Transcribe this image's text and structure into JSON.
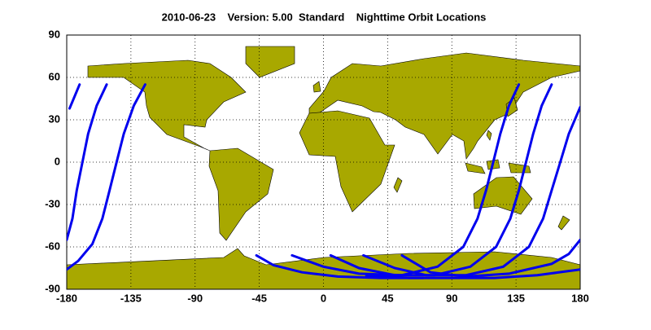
{
  "chart_data": {
    "type": "map",
    "title": "2010-06-23    Version: 5.00  Standard    Nighttime Orbit Locations",
    "xlim": [
      -180,
      180
    ],
    "ylim": [
      -90,
      90
    ],
    "xticks": [
      -180,
      -135,
      -90,
      -45,
      0,
      45,
      90,
      135,
      180
    ],
    "yticks": [
      90,
      60,
      30,
      0,
      -30,
      -60,
      -90
    ],
    "grid": true,
    "land_color": "#a8a800",
    "series": [
      {
        "color": "#0000ee",
        "x": [
          -125,
          -133,
          -140,
          -145,
          -150,
          -155,
          -162,
          -172,
          -180
        ],
        "values": [
          55,
          40,
          20,
          0,
          -20,
          -40,
          -58,
          -70,
          -76
        ]
      },
      {
        "color": "#0000ee",
        "x": [
          -152,
          -159,
          -165,
          -169,
          -173,
          -176,
          -180
        ],
        "values": [
          55,
          40,
          20,
          0,
          -20,
          -40,
          -55
        ]
      },
      {
        "color": "#0000ee",
        "x": [
          -171,
          -178,
          null,
          180,
          172,
          166,
          160,
          154,
          144,
          126,
          100,
          72,
          50,
          28
        ],
        "values": [
          55,
          38,
          null,
          39,
          20,
          0,
          -20,
          -40,
          -60,
          -74,
          -80,
          -80,
          -75,
          -66
        ]
      },
      {
        "color": "#0000ee",
        "x": [
          137,
          130,
          124,
          119,
          114,
          108,
          98,
          80,
          55,
          25,
          0,
          -22
        ],
        "values": [
          55,
          40,
          20,
          0,
          -20,
          -40,
          -60,
          -74,
          -80,
          -79,
          -74,
          -66
        ]
      },
      {
        "color": "#0000ee",
        "x": [
          160,
          153,
          147,
          142,
          137,
          131,
          121,
          103,
          78,
          50,
          25,
          5
        ],
        "values": [
          55,
          40,
          20,
          0,
          -20,
          -40,
          -60,
          -74,
          -80,
          -80,
          -75,
          -66
        ]
      },
      {
        "color": "#0000ee",
        "x": [
          180,
          172,
          160,
          130,
          100,
          75,
          55
        ],
        "values": [
          -55,
          -65,
          -72,
          -79,
          -81,
          -78,
          -66
        ]
      },
      {
        "color": "#0000ee",
        "x": [
          180,
          150,
          120,
          90,
          60,
          30
        ],
        "values": [
          -76,
          -80,
          -82,
          -82,
          -82,
          -80
        ]
      },
      {
        "color": "#0000ee",
        "x": [
          -47,
          -35,
          -15,
          10,
          40,
          70
        ],
        "values": [
          -66,
          -73,
          -78,
          -81,
          -82,
          -82
        ]
      }
    ]
  }
}
